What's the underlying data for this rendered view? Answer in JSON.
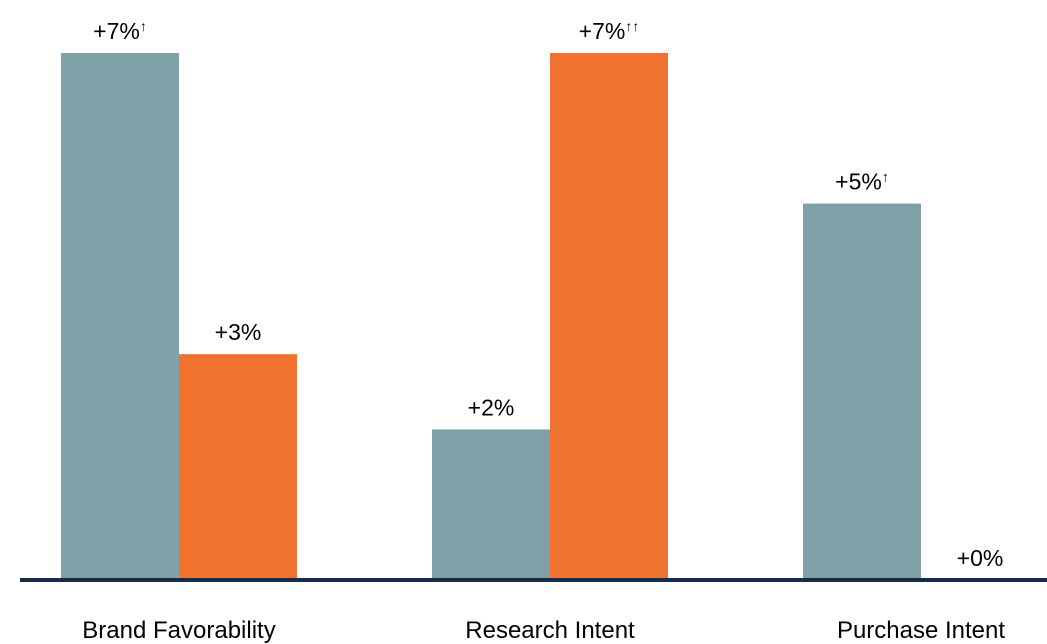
{
  "colors": {
    "series_1": "#7fa1a8",
    "series_2": "#ef722e",
    "axis": "#1a2b48",
    "text": "#000000"
  },
  "chart_data": {
    "type": "bar",
    "title": "",
    "xlabel": "",
    "ylabel": "",
    "categories": [
      "Brand Favorability",
      "Research Intent",
      "Purchase Intent"
    ],
    "ylim": [
      0,
      7
    ],
    "grid": false,
    "legend": "none",
    "series": [
      {
        "values": [
          7,
          2,
          5
        ],
        "color": "#7fa1a8",
        "data_labels": [
          "+7%",
          "+2%",
          "+5%"
        ],
        "markers": [
          "↑",
          "",
          "↑"
        ]
      },
      {
        "values": [
          3,
          7,
          0
        ],
        "color": "#ef722e",
        "data_labels": [
          "+3%",
          "+7%",
          "+0%"
        ],
        "markers": [
          "",
          "↑↑",
          ""
        ]
      }
    ]
  }
}
